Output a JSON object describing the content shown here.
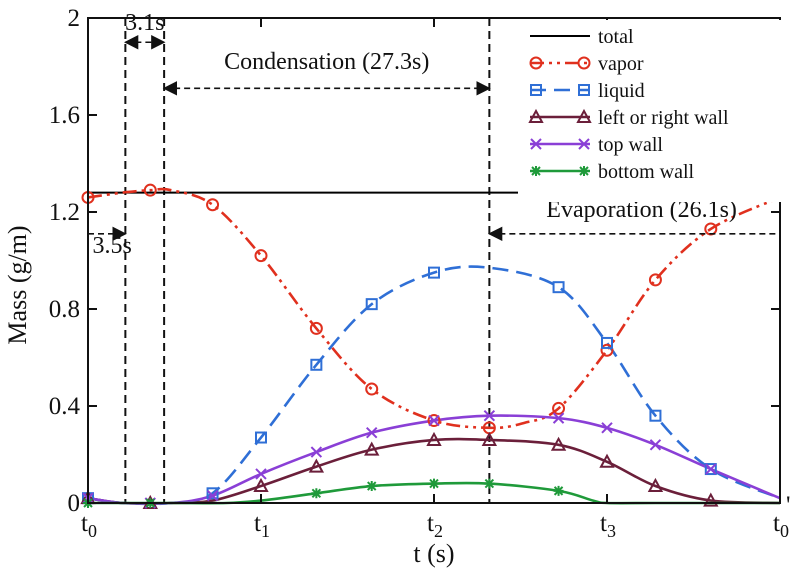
{
  "chart_data": {
    "type": "line",
    "xlabel": "t (s)",
    "ylabel": "Mass (g/m)",
    "xlim": [
      0,
      1
    ],
    "ylim": [
      0,
      2
    ],
    "x_ticks": [
      {
        "value": 0.0,
        "main": "t",
        "sub": "0",
        "prime": false
      },
      {
        "value": 0.25,
        "main": "t",
        "sub": "1",
        "prime": false
      },
      {
        "value": 0.5,
        "main": "t",
        "sub": "2",
        "prime": false
      },
      {
        "value": 0.75,
        "main": "t",
        "sub": "3",
        "prime": false
      },
      {
        "value": 1.0,
        "main": "t",
        "sub": "0",
        "prime": true
      }
    ],
    "y_ticks": [
      {
        "value": 0,
        "label": "0"
      },
      {
        "value": 0.4,
        "label": "0.4"
      },
      {
        "value": 0.8,
        "label": "0.8"
      },
      {
        "value": 1.2,
        "label": "1.2"
      },
      {
        "value": 1.6,
        "label": "1.6"
      },
      {
        "value": 2,
        "label": "2"
      }
    ],
    "legend_position": "top-right",
    "series": [
      {
        "name": "total",
        "color": "#000000",
        "dash": "solid",
        "marker": "none",
        "x": [
          0.0,
          1.0
        ],
        "y": [
          1.28,
          1.28
        ]
      },
      {
        "name": "vapor",
        "color": "#e0301e",
        "dash": "dashdotdot",
        "marker": "circle",
        "x": [
          0.0,
          0.05,
          0.09,
          0.12,
          0.18,
          0.25,
          0.33,
          0.41,
          0.5,
          0.58,
          0.63,
          0.68,
          0.75,
          0.82,
          0.9,
          1.0
        ],
        "y": [
          1.26,
          1.28,
          1.29,
          1.29,
          1.23,
          1.02,
          0.72,
          0.47,
          0.34,
          0.31,
          0.33,
          0.39,
          0.63,
          0.92,
          1.13,
          1.26
        ],
        "marker_x": [
          0.0,
          0.09,
          0.18,
          0.25,
          0.33,
          0.41,
          0.5,
          0.58,
          0.68,
          0.75,
          0.82,
          0.9
        ],
        "marker_y": [
          1.26,
          1.29,
          1.23,
          1.02,
          0.72,
          0.47,
          0.34,
          0.31,
          0.39,
          0.63,
          0.92,
          1.13
        ]
      },
      {
        "name": "liquid",
        "color": "#2f6fd6",
        "dash": "dashed",
        "marker": "square",
        "x": [
          0.0,
          0.05,
          0.12,
          0.18,
          0.25,
          0.33,
          0.41,
          0.5,
          0.58,
          0.68,
          0.75,
          0.82,
          0.9,
          1.0
        ],
        "y": [
          0.02,
          0.0,
          0.0,
          0.04,
          0.27,
          0.57,
          0.82,
          0.95,
          0.97,
          0.89,
          0.66,
          0.36,
          0.14,
          0.02
        ],
        "marker_x": [
          0.0,
          0.18,
          0.25,
          0.33,
          0.41,
          0.5,
          0.68,
          0.75,
          0.82,
          0.9
        ],
        "marker_y": [
          0.02,
          0.04,
          0.27,
          0.57,
          0.82,
          0.95,
          0.89,
          0.66,
          0.36,
          0.14
        ]
      },
      {
        "name": "left or right wall",
        "color": "#6b1f3a",
        "dash": "solid",
        "marker": "triangle",
        "x": [
          0.0,
          0.05,
          0.12,
          0.18,
          0.25,
          0.33,
          0.41,
          0.5,
          0.58,
          0.68,
          0.75,
          0.82,
          0.9,
          1.0
        ],
        "y": [
          0.02,
          0.0,
          0.0,
          0.01,
          0.07,
          0.15,
          0.22,
          0.26,
          0.26,
          0.24,
          0.17,
          0.07,
          0.01,
          0.0
        ],
        "marker_x": [
          0.0,
          0.09,
          0.25,
          0.33,
          0.41,
          0.5,
          0.58,
          0.68,
          0.75,
          0.82,
          0.9
        ],
        "marker_y": [
          0.02,
          0.0,
          0.07,
          0.15,
          0.22,
          0.26,
          0.26,
          0.24,
          0.17,
          0.07,
          0.01
        ]
      },
      {
        "name": "top wall",
        "color": "#8a3fd6",
        "dash": "solid",
        "marker": "x",
        "x": [
          0.0,
          0.05,
          0.12,
          0.18,
          0.25,
          0.33,
          0.41,
          0.5,
          0.58,
          0.68,
          0.75,
          0.82,
          0.9,
          1.0
        ],
        "y": [
          0.02,
          0.0,
          0.0,
          0.03,
          0.12,
          0.21,
          0.29,
          0.34,
          0.36,
          0.35,
          0.31,
          0.24,
          0.14,
          0.02
        ],
        "marker_x": [
          0.0,
          0.09,
          0.18,
          0.25,
          0.33,
          0.41,
          0.5,
          0.58,
          0.68,
          0.75,
          0.82,
          0.9
        ],
        "marker_y": [
          0.02,
          0.0,
          0.03,
          0.12,
          0.21,
          0.29,
          0.34,
          0.36,
          0.35,
          0.31,
          0.24,
          0.14
        ]
      },
      {
        "name": "bottom wall",
        "color": "#1f9a3a",
        "dash": "solid",
        "marker": "asterisk",
        "x": [
          0.0,
          0.05,
          0.12,
          0.2,
          0.25,
          0.33,
          0.41,
          0.5,
          0.58,
          0.68,
          0.73,
          0.75,
          0.82,
          0.9,
          1.0
        ],
        "y": [
          0.0,
          0.0,
          0.0,
          0.0,
          0.01,
          0.04,
          0.07,
          0.08,
          0.08,
          0.05,
          0.01,
          0.0,
          0.0,
          0.0,
          0.0
        ],
        "marker_x": [
          0.0,
          0.09,
          0.33,
          0.41,
          0.5,
          0.58,
          0.68
        ],
        "marker_y": [
          0.0,
          0.0,
          0.04,
          0.07,
          0.08,
          0.08,
          0.05
        ]
      }
    ],
    "vlines": [
      {
        "name": "v1",
        "x": 0.054
      },
      {
        "name": "v2",
        "x": 0.11
      },
      {
        "name": "v3",
        "x": 0.58
      }
    ],
    "annotations": [
      {
        "name": "dur-3-1s",
        "text": "3.1s",
        "y": 1.9,
        "x_from": 0.054,
        "x_to": 0.11,
        "label_x": 0.082,
        "label_y": 1.95,
        "anchor": "middle",
        "arrows": "both"
      },
      {
        "name": "dur-3-5s",
        "text": "3.5s",
        "y": 1.11,
        "x_from": 0.0,
        "x_to": 0.054,
        "label_x": 0.035,
        "label_y": 1.03,
        "anchor": "middle",
        "arrows": "end"
      },
      {
        "name": "condensation",
        "text": "Condensation (27.3s)",
        "y": 1.71,
        "x_from": 0.11,
        "x_to": 0.58,
        "label_x": 0.345,
        "label_y": 1.79,
        "anchor": "middle",
        "arrows": "both"
      },
      {
        "name": "evaporation",
        "text": "Evaporation (26.1s)",
        "y": 1.11,
        "x_from": 0.58,
        "x_to": 1.0,
        "label_x": 0.8,
        "label_y": 1.18,
        "anchor": "middle",
        "arrows": "start"
      }
    ]
  }
}
